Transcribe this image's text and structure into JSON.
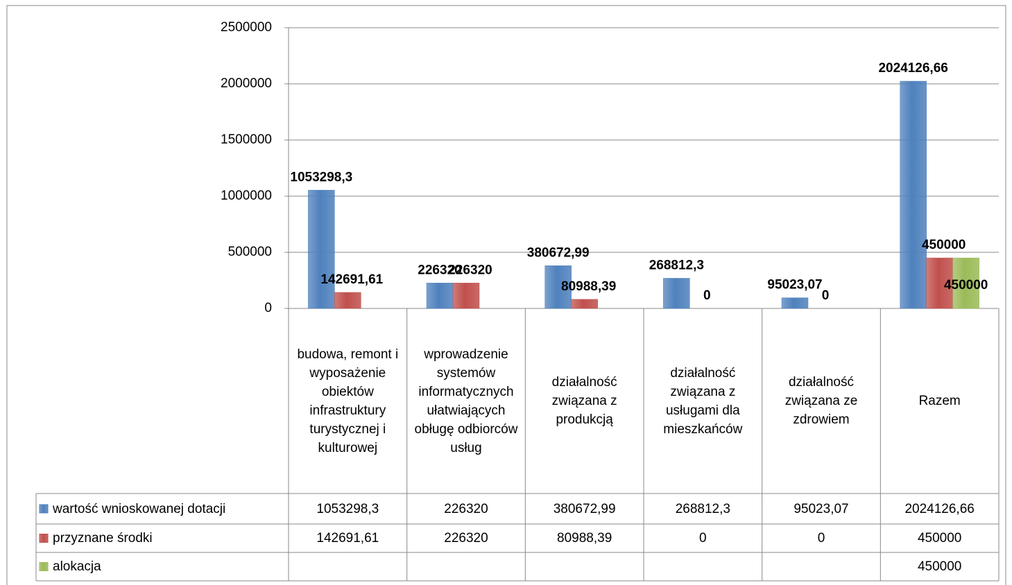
{
  "chart_data": {
    "type": "bar",
    "categories": [
      "budowa, remont i wyposażenie obiektów infrastruktury turystycznej i kulturowej",
      "wprowadzenie systemów informatycznych ułatwiających obługę odbiorców usług",
      "działalność związana z produkcją",
      "działalność związana z usługami dla mieszkańców",
      "działalność związana ze zdrowiem",
      "Razem"
    ],
    "series": [
      {
        "name": "wartość wnioskowanej dotacji",
        "color": "#4f81bd",
        "values": [
          1053298.3,
          226320,
          380672.99,
          268812.3,
          95023.07,
          2024126.66
        ],
        "value_labels": [
          "1053298,3",
          "226320",
          "380672,99",
          "268812,3",
          "95023,07",
          "2024126,66"
        ]
      },
      {
        "name": "przyznane środki",
        "color": "#c0504d",
        "values": [
          142691.61,
          226320,
          80988.39,
          0,
          0,
          450000
        ],
        "value_labels": [
          "142691,61",
          "226320",
          "80988,39",
          "0",
          "0",
          "450000"
        ]
      },
      {
        "name": "alokacja",
        "color": "#9bbb59",
        "values": [
          null,
          null,
          null,
          null,
          null,
          450000
        ],
        "value_labels": [
          null,
          null,
          null,
          null,
          null,
          "450000"
        ]
      }
    ],
    "ylim": [
      0,
      2500000
    ],
    "yticks": [
      0,
      500000,
      1000000,
      1500000,
      2000000,
      2500000
    ],
    "grid": true,
    "data_table": true
  }
}
